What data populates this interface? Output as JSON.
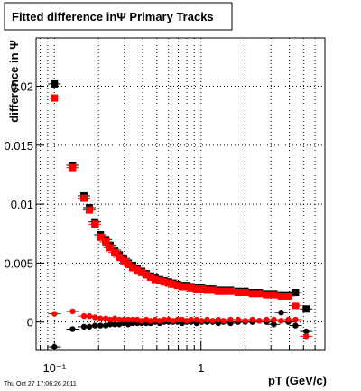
{
  "chart_data": {
    "type": "scatter",
    "title": "Fitted difference inΨ   Primary Tracks",
    "y_label": "difference in Ψ",
    "x_label": "pT (GeV/c)",
    "footer": "Thu Oct 27 17:06:26 2011",
    "x_log": true,
    "grid": true,
    "xlim": [
      0.075,
      7
    ],
    "ylim": [
      -0.0024,
      0.0241
    ],
    "xticks": [
      {
        "value": 0.1,
        "label": "10⁻¹"
      },
      1
    ],
    "xminor": [
      0.08,
      0.09,
      0.2,
      0.3,
      0.4,
      0.5,
      0.6,
      0.7,
      0.8,
      0.9,
      2,
      3,
      4,
      5,
      6,
      7
    ],
    "yticks": [
      0,
      0.005,
      0.01,
      0.015,
      0.02
    ],
    "x": [
      0.1,
      0.133,
      0.159,
      0.173,
      0.189,
      0.206,
      0.224,
      0.24,
      0.258,
      0.277,
      0.297,
      0.319,
      0.342,
      0.367,
      0.394,
      0.423,
      0.453,
      0.486,
      0.522,
      0.56,
      0.601,
      0.645,
      0.692,
      0.743,
      0.798,
      0.856,
      0.932,
      1.01,
      1.1,
      1.2,
      1.31,
      1.42,
      1.59,
      1.79,
      2.0,
      2.24,
      2.5,
      2.8,
      3.14,
      3.52,
      3.94,
      4.41,
      5.22
    ],
    "series": [
      {
        "color": "#000000",
        "marker": "square",
        "values": [
          0.0202,
          0.0133,
          0.0107,
          0.0097,
          0.0085,
          0.0074,
          0.007,
          0.0065,
          0.0061,
          0.0057,
          0.0054,
          0.005,
          0.0048,
          0.0045,
          0.0043,
          0.0041,
          0.0039,
          0.0038,
          0.0036,
          0.0035,
          0.0034,
          0.0033,
          0.0032,
          0.0031,
          0.0031,
          0.003,
          0.0029,
          0.0029,
          0.0028,
          0.0028,
          0.0027,
          0.0027,
          0.0027,
          0.0026,
          0.0026,
          0.0025,
          0.0025,
          0.0024,
          0.0024,
          0.0023,
          0.0023,
          0.0025,
          0.0011
        ]
      },
      {
        "color": "#ff0000",
        "marker": "square",
        "values": [
          0.019,
          0.0131,
          0.0105,
          0.0095,
          0.0083,
          0.0072,
          0.0068,
          0.0063,
          0.0059,
          0.0055,
          0.0052,
          0.0049,
          0.0046,
          0.0044,
          0.0042,
          0.004,
          0.0038,
          0.0036,
          0.0035,
          0.0034,
          0.0033,
          0.0032,
          0.0031,
          0.003,
          0.003,
          0.0029,
          0.0028,
          0.0028,
          0.0027,
          0.0027,
          0.0026,
          0.0026,
          0.0026,
          0.0025,
          0.0025,
          0.0024,
          0.0024,
          0.0023,
          0.0023,
          0.0022,
          0.0022,
          0.0014,
          null
        ]
      },
      {
        "color": "#000000",
        "marker": "circle",
        "values": [
          -0.0021,
          -0.0006,
          -0.0004,
          -0.0004,
          -0.0003,
          -0.0003,
          -0.0003,
          -0.0002,
          -0.0002,
          -0.0002,
          -0.0001,
          -0.0002,
          -0.0001,
          -0.0001,
          -0.0001,
          -0.0001,
          -0.0001,
          0.0,
          -0.0001,
          0.0,
          0.0,
          0.0,
          0.0,
          -0.0001,
          0.0,
          0.0,
          -0.0001,
          0.0,
          0.0,
          0.0,
          -0.0001,
          0.0,
          -0.0001,
          0.0,
          0.0,
          0.0,
          0.0001,
          0.0,
          -0.0002,
          0.0008,
          0.0,
          -0.0003,
          -0.0008
        ]
      },
      {
        "color": "#ff0000",
        "marker": "circle",
        "values": [
          0.0007,
          0.0009,
          0.0005,
          0.0005,
          0.0004,
          0.0003,
          0.0003,
          0.0002,
          0.0003,
          0.0002,
          0.0002,
          0.0002,
          0.0002,
          0.0002,
          0.0001,
          0.0002,
          0.0001,
          0.0002,
          0.0001,
          0.0002,
          0.0002,
          0.0001,
          0.0002,
          0.0002,
          0.0001,
          0.0002,
          0.0002,
          0.0001,
          0.0002,
          0.0001,
          0.0002,
          0.0001,
          0.0002,
          0.0002,
          0.0001,
          0.0002,
          0.0001,
          0.0002,
          0.0002,
          0.0001,
          0.0002,
          0.0002,
          -0.0012
        ]
      }
    ]
  }
}
